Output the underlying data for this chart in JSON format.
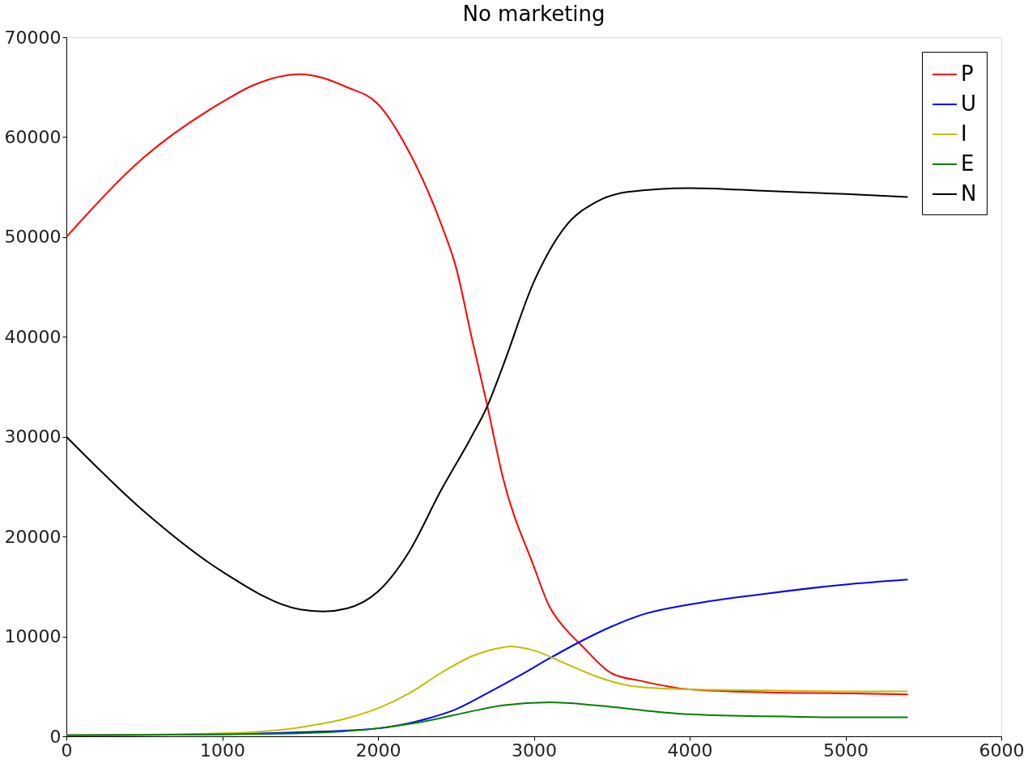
{
  "chart_data": {
    "type": "line",
    "title": "No marketing",
    "xlim": [
      0,
      6000
    ],
    "ylim": [
      0,
      70000
    ],
    "xticks": [
      0,
      1000,
      2000,
      3000,
      4000,
      5000,
      6000
    ],
    "yticks": [
      0,
      10000,
      20000,
      30000,
      40000,
      50000,
      60000,
      70000
    ],
    "grid": false,
    "legend": "top right",
    "marker": "none",
    "line_style": "solid",
    "series": [
      {
        "name": "P",
        "color": "#ff0000",
        "x": [
          0,
          500,
          1000,
          1200,
          1500,
          1800,
          2000,
          2200,
          2400,
          2500,
          2600,
          2700,
          2800,
          3000,
          3100,
          3200,
          3300,
          3500,
          3700,
          4000,
          4500,
          5000,
          5400
        ],
        "values": [
          50000,
          58000,
          63500,
          65200,
          66300,
          65000,
          63300,
          58500,
          51500,
          47000,
          40000,
          33200,
          26000,
          17000,
          13000,
          10800,
          9200,
          6300,
          5500,
          4700,
          4400,
          4300,
          4200
        ]
      },
      {
        "name": "U",
        "color": "#0000ff",
        "x": [
          0,
          1000,
          1500,
          2000,
          2300,
          2500,
          2700,
          2900,
          3100,
          3300,
          3500,
          3700,
          4000,
          4500,
          5000,
          5400
        ],
        "values": [
          100,
          200,
          400,
          800,
          1700,
          2700,
          4300,
          6000,
          7800,
          9500,
          11000,
          12200,
          13200,
          14300,
          15200,
          15700
        ]
      },
      {
        "name": "I",
        "color": "#bfbf00",
        "x": [
          0,
          1000,
          1500,
          1800,
          2000,
          2200,
          2400,
          2600,
          2800,
          2850,
          3000,
          3200,
          3400,
          3600,
          3800,
          4000,
          4500,
          5000,
          5400
        ],
        "values": [
          100,
          300,
          900,
          1800,
          2800,
          4300,
          6300,
          8000,
          8900,
          9000,
          8600,
          7300,
          6000,
          5100,
          4800,
          4700,
          4600,
          4500,
          4500
        ]
      },
      {
        "name": "E",
        "color": "#008000",
        "x": [
          0,
          1000,
          1500,
          2000,
          2300,
          2600,
          2800,
          3100,
          3400,
          3700,
          4000,
          4500,
          5000,
          5400
        ],
        "values": [
          100,
          200,
          300,
          800,
          1500,
          2500,
          3100,
          3400,
          3100,
          2600,
          2200,
          2000,
          1900,
          1900
        ]
      },
      {
        "name": "N",
        "color": "#000000",
        "x": [
          0,
          500,
          1000,
          1500,
          1650,
          1800,
          2000,
          2200,
          2400,
          2600,
          2700,
          2800,
          3000,
          3200,
          3400,
          3600,
          4000,
          4500,
          5000,
          5400
        ],
        "values": [
          30000,
          22500,
          16500,
          12700,
          12500,
          12800,
          14500,
          18500,
          24500,
          30000,
          33000,
          37000,
          45500,
          51000,
          53500,
          54500,
          54900,
          54600,
          54300,
          54000
        ]
      }
    ]
  }
}
